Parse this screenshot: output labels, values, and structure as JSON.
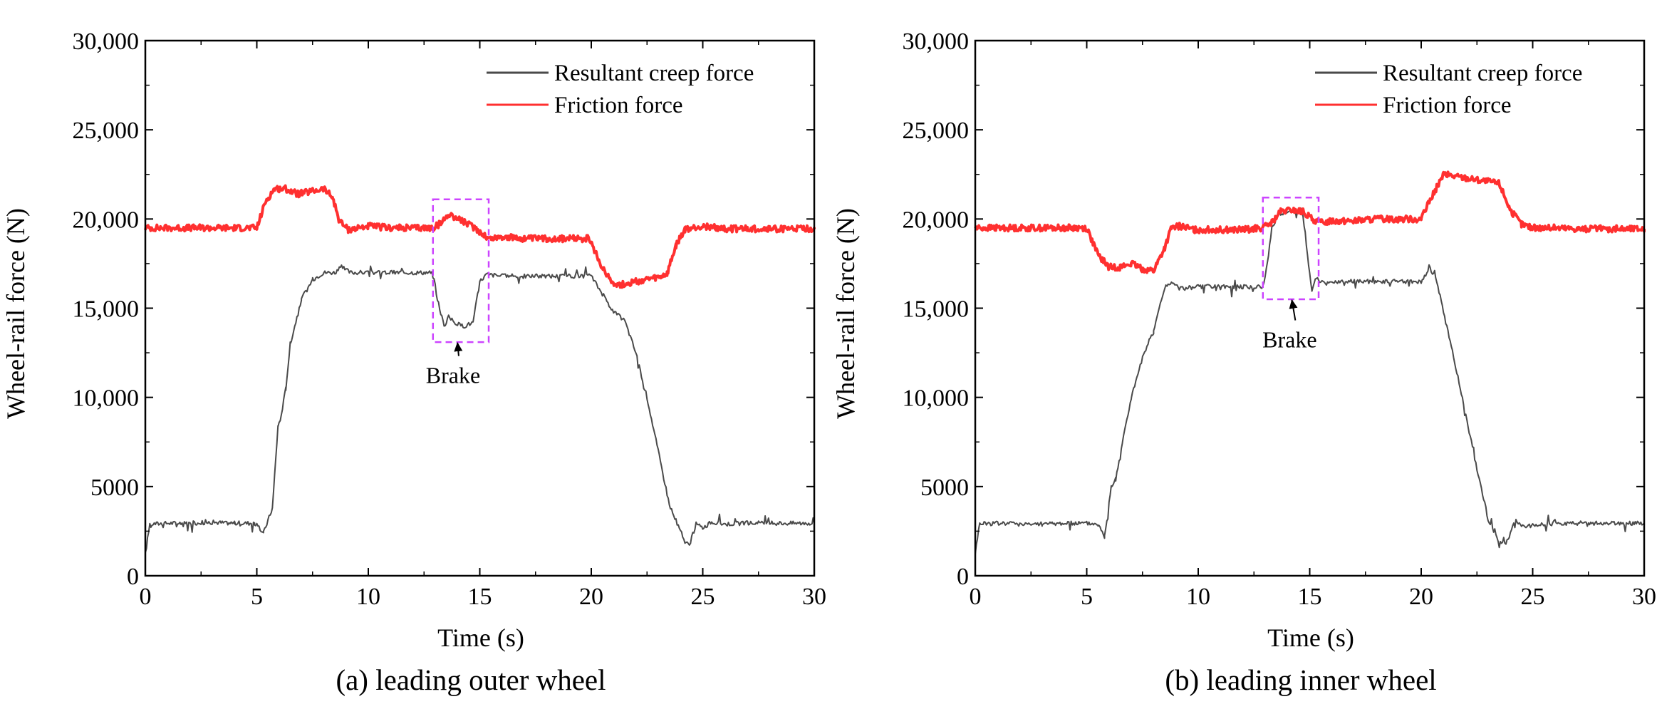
{
  "colors": {
    "creep": "#4a4a4a",
    "friction": "#ff3030",
    "highlight": "#cc44ff",
    "axis": "#000000"
  },
  "chart_data": [
    {
      "type": "line",
      "caption": "(a) leading outer wheel",
      "xlabel": "Time (s)",
      "ylabel": "Wheel-rail force (N)",
      "xlim": [
        0,
        30
      ],
      "ylim": [
        0,
        30000
      ],
      "xticks": [
        0,
        5,
        10,
        15,
        20,
        25,
        30
      ],
      "xtick_labels": [
        "0",
        "5",
        "10",
        "15",
        "20",
        "25",
        "30"
      ],
      "yticks": [
        0,
        5000,
        10000,
        15000,
        20000,
        25000,
        30000
      ],
      "ytick_labels": [
        "0",
        "5000",
        "10,000",
        "15,000",
        "20,000",
        "25,000",
        "30,000"
      ],
      "legend": [
        "Resultant creep force",
        "Friction force"
      ],
      "legend_position": "top-right",
      "annotation": {
        "text": "Brake",
        "box": {
          "x0": 12.9,
          "x1": 15.4,
          "y0": 13100,
          "y1": 21100
        },
        "arrow_to": [
          14.0,
          13300
        ],
        "text_at": [
          13.8,
          10800
        ]
      },
      "series": [
        {
          "name": "Resultant creep force",
          "x": [
            0,
            0.2,
            1,
            2,
            3,
            4,
            4.9,
            5.3,
            5.7,
            5.95,
            6.05,
            6.3,
            6.5,
            7,
            7.5,
            8,
            8.5,
            8.8,
            9.2,
            10,
            11,
            12,
            12.9,
            13.1,
            13.4,
            13.6,
            14,
            14.3,
            14.7,
            15,
            15.3,
            16,
            17,
            18,
            19,
            20,
            20.5,
            21,
            21.5,
            22,
            22.5,
            23,
            23.5,
            23.9,
            24.2,
            24.4,
            24.7,
            25,
            25.4,
            26,
            27,
            28,
            29,
            30
          ],
          "y": [
            1200,
            2900,
            2950,
            2950,
            3000,
            2950,
            2950,
            2400,
            3800,
            8400,
            8700,
            10500,
            13000,
            15500,
            16600,
            17000,
            17000,
            17300,
            17000,
            17000,
            17000,
            17000,
            17000,
            15500,
            14000,
            14500,
            14100,
            14000,
            14200,
            16500,
            16900,
            16800,
            16800,
            16800,
            16800,
            16800,
            15800,
            14800,
            14300,
            12500,
            10000,
            7000,
            4000,
            2800,
            1900,
            1700,
            2900,
            2700,
            3000,
            2900,
            2950,
            2950,
            2950,
            2950
          ]
        },
        {
          "name": "Friction force",
          "x": [
            0,
            1,
            2,
            3,
            4,
            5,
            5.4,
            5.8,
            6.3,
            6.8,
            7.3,
            8,
            8.4,
            8.7,
            9.1,
            10,
            11,
            12,
            12.9,
            13.3,
            13.6,
            14.2,
            14.9,
            15.4,
            16,
            17,
            18,
            19,
            19.9,
            20.4,
            20.9,
            21.3,
            22,
            23,
            23.4,
            23.8,
            24.2,
            25,
            26,
            27,
            28,
            29,
            30
          ],
          "y": [
            19500,
            19500,
            19500,
            19500,
            19500,
            19500,
            21000,
            21700,
            21700,
            21400,
            21500,
            21700,
            21200,
            19900,
            19400,
            19600,
            19500,
            19500,
            19500,
            19800,
            20300,
            19900,
            19400,
            18900,
            19000,
            18900,
            18900,
            18900,
            18900,
            17500,
            16500,
            16300,
            16500,
            16700,
            16900,
            18500,
            19400,
            19600,
            19450,
            19450,
            19450,
            19450,
            19450
          ]
        }
      ]
    },
    {
      "type": "line",
      "caption": "(b) leading inner wheel",
      "xlabel": "Time (s)",
      "ylabel": "Wheel-rail force (N)",
      "xlim": [
        0,
        30
      ],
      "ylim": [
        0,
        30000
      ],
      "xticks": [
        0,
        5,
        10,
        15,
        20,
        25,
        30
      ],
      "xtick_labels": [
        "0",
        "5",
        "10",
        "15",
        "20",
        "25",
        "30"
      ],
      "yticks": [
        0,
        5000,
        10000,
        15000,
        20000,
        25000,
        30000
      ],
      "ytick_labels": [
        "0",
        "5000",
        "10,000",
        "15,000",
        "20,000",
        "25,000",
        "30,000"
      ],
      "legend": [
        "Resultant creep force",
        "Friction force"
      ],
      "legend_position": "top-right",
      "annotation": {
        "text": "Brake",
        "box": {
          "x0": 12.9,
          "x1": 15.4,
          "y0": 15500,
          "y1": 21200
        },
        "arrow_to": [
          14.2,
          15700
        ],
        "text_at": [
          14.1,
          12800
        ]
      },
      "series": [
        {
          "name": "Resultant creep force",
          "x": [
            0,
            0.2,
            1,
            2,
            3,
            4,
            5,
            5.5,
            5.8,
            6.1,
            6.3,
            6.6,
            7,
            7.5,
            8,
            8.5,
            8.8,
            9.2,
            10,
            11,
            12,
            12.9,
            13.1,
            13.3,
            13.6,
            14,
            14.5,
            14.7,
            14.9,
            15.1,
            15.3,
            15.7,
            16,
            17,
            18,
            19,
            20,
            20.4,
            20.7,
            21,
            21.5,
            22,
            22.5,
            23,
            23.5,
            23.8,
            24.2,
            24.5,
            25,
            26,
            27,
            28,
            29,
            30
          ],
          "y": [
            1300,
            2950,
            2950,
            2950,
            2900,
            2950,
            2950,
            2900,
            2200,
            5000,
            5400,
            7500,
            10000,
            12200,
            13700,
            16200,
            16400,
            16100,
            16200,
            16200,
            16200,
            16200,
            17500,
            19500,
            20300,
            20400,
            20500,
            20200,
            18000,
            16000,
            16700,
            16300,
            16500,
            16500,
            16500,
            16500,
            16500,
            17200,
            16500,
            14800,
            12000,
            9000,
            6000,
            3200,
            1800,
            1800,
            3100,
            2800,
            2800,
            2950,
            2950,
            2950,
            2950,
            2950
          ]
        },
        {
          "name": "Friction force",
          "x": [
            0,
            1,
            2,
            3,
            4,
            5,
            5.5,
            6,
            6.5,
            7,
            7.5,
            8,
            8.5,
            8.8,
            9.2,
            9.8,
            10.5,
            11,
            12,
            12.9,
            13.3,
            13.7,
            14.2,
            14.7,
            15.1,
            15.5,
            16,
            17,
            18,
            19,
            20,
            20.5,
            21,
            22,
            23,
            23.5,
            24,
            24.5,
            25,
            26,
            27,
            28,
            29,
            30
          ],
          "y": [
            19500,
            19500,
            19500,
            19500,
            19500,
            19500,
            18000,
            17300,
            17300,
            17500,
            17200,
            17100,
            18400,
            19500,
            19600,
            19400,
            19400,
            19400,
            19400,
            19500,
            19800,
            20400,
            20500,
            20400,
            20000,
            19800,
            19900,
            19900,
            20000,
            20000,
            20000,
            21300,
            22500,
            22300,
            22100,
            22000,
            20500,
            19700,
            19500,
            19500,
            19450,
            19450,
            19450,
            19450
          ]
        }
      ]
    }
  ]
}
